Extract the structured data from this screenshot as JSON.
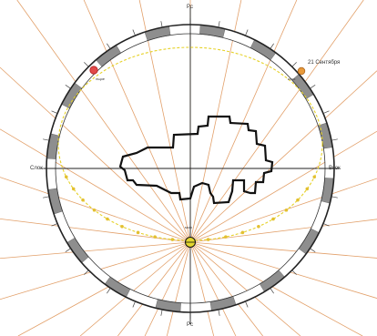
{
  "labels": {
    "north": "Рс",
    "south": "Рс",
    "west": "Слок",
    "east": "Вкок",
    "date": "21 Сентября",
    "sunrise_note": "лщое",
    "sunset_note": "клсо",
    "center_note": "мсф"
  },
  "colors": {
    "rays": "#e2a06a",
    "sun_path": "#e6d229",
    "sun_dot": "#e3c030",
    "ring_dark": "#8e8e8e",
    "building": "#111111",
    "sunrise_marker": "#e24a4a",
    "sunset_marker": "#e89a3a"
  },
  "ring": {
    "dark_segment_count": 16,
    "tick_count": 32
  },
  "rays": {
    "count": 29
  }
}
